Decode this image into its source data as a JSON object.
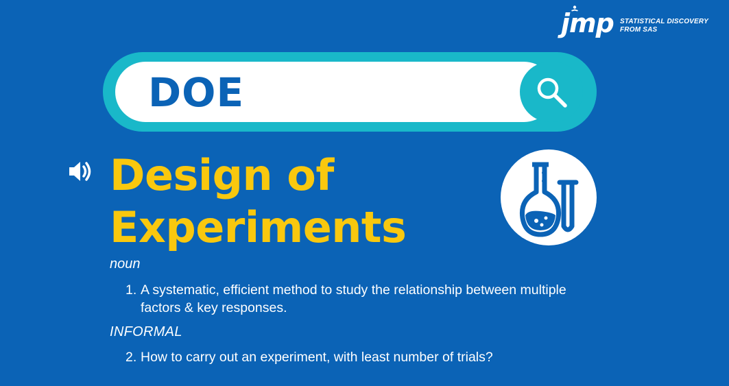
{
  "logo": {
    "mark": "jmp",
    "tagline_line1": "STATISTICAL DISCOVERY",
    "tagline_line2": "FROM SAS"
  },
  "search": {
    "query": "DOE",
    "icon": "search-icon"
  },
  "entry": {
    "speaker_icon": "speaker-icon",
    "title_line1": "Design of",
    "title_line2": "Experiments",
    "badge_icon": "lab-flask-icon"
  },
  "definitions": [
    {
      "label": "noun",
      "number": "1.",
      "text_line1": "A systematic, efficient method to study the relationship between  multiple",
      "text_line2": "factors & key responses."
    },
    {
      "label": "INFORMAL",
      "number": "2.",
      "text_line1": "How to carry out an experiment, with least number of trials?"
    }
  ],
  "colors": {
    "background": "#0B63B6",
    "teal": "#19B8C9",
    "title": "#F9C80E",
    "text": "#FFFFFF"
  }
}
